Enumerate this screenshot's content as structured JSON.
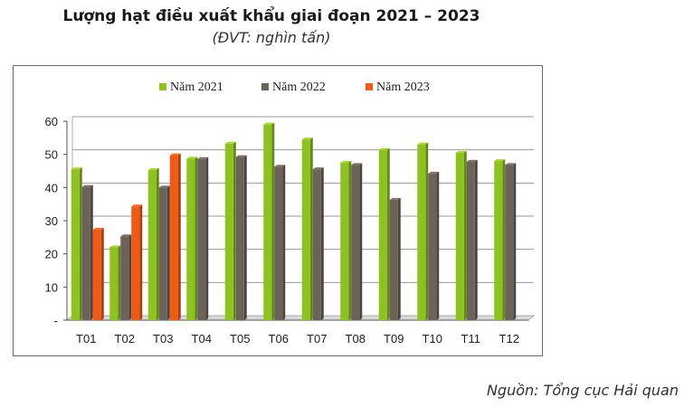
{
  "chart_data": {
    "type": "bar",
    "title": "Lượng hạt điều xuất khẩu giai đoạn 2021 – 2023",
    "subtitle": "(ĐVT: nghìn tấn)",
    "source": "Nguồn: Tổng cục Hải quan",
    "categories": [
      "T01",
      "T02",
      "T03",
      "T04",
      "T05",
      "T06",
      "T07",
      "T08",
      "T09",
      "T10",
      "T11",
      "T12"
    ],
    "series": [
      {
        "name": "Năm 2021",
        "color": "#8dc21f",
        "values": [
          45.5,
          22,
          45.3,
          48.7,
          53.2,
          59,
          54.5,
          47.5,
          51.3,
          53,
          50.5,
          48
        ]
      },
      {
        "name": "Năm 2022",
        "color": "#6b625a",
        "values": [
          40.2,
          25.3,
          40,
          48.6,
          49.2,
          46.3,
          45.5,
          46.8,
          36.3,
          44.2,
          47.8,
          46.8
        ]
      },
      {
        "name": "Năm 2023",
        "color": "#f05a14",
        "values": [
          27.3,
          34.3,
          49.7,
          null,
          null,
          null,
          null,
          null,
          null,
          null,
          null,
          null
        ]
      }
    ],
    "y_ticks": [
      "-",
      "10",
      "20",
      "30",
      "40",
      "50",
      "60"
    ],
    "ylim": [
      0,
      60
    ],
    "grid": true,
    "legend_position": "top-center",
    "xlabel": "",
    "ylabel": ""
  }
}
